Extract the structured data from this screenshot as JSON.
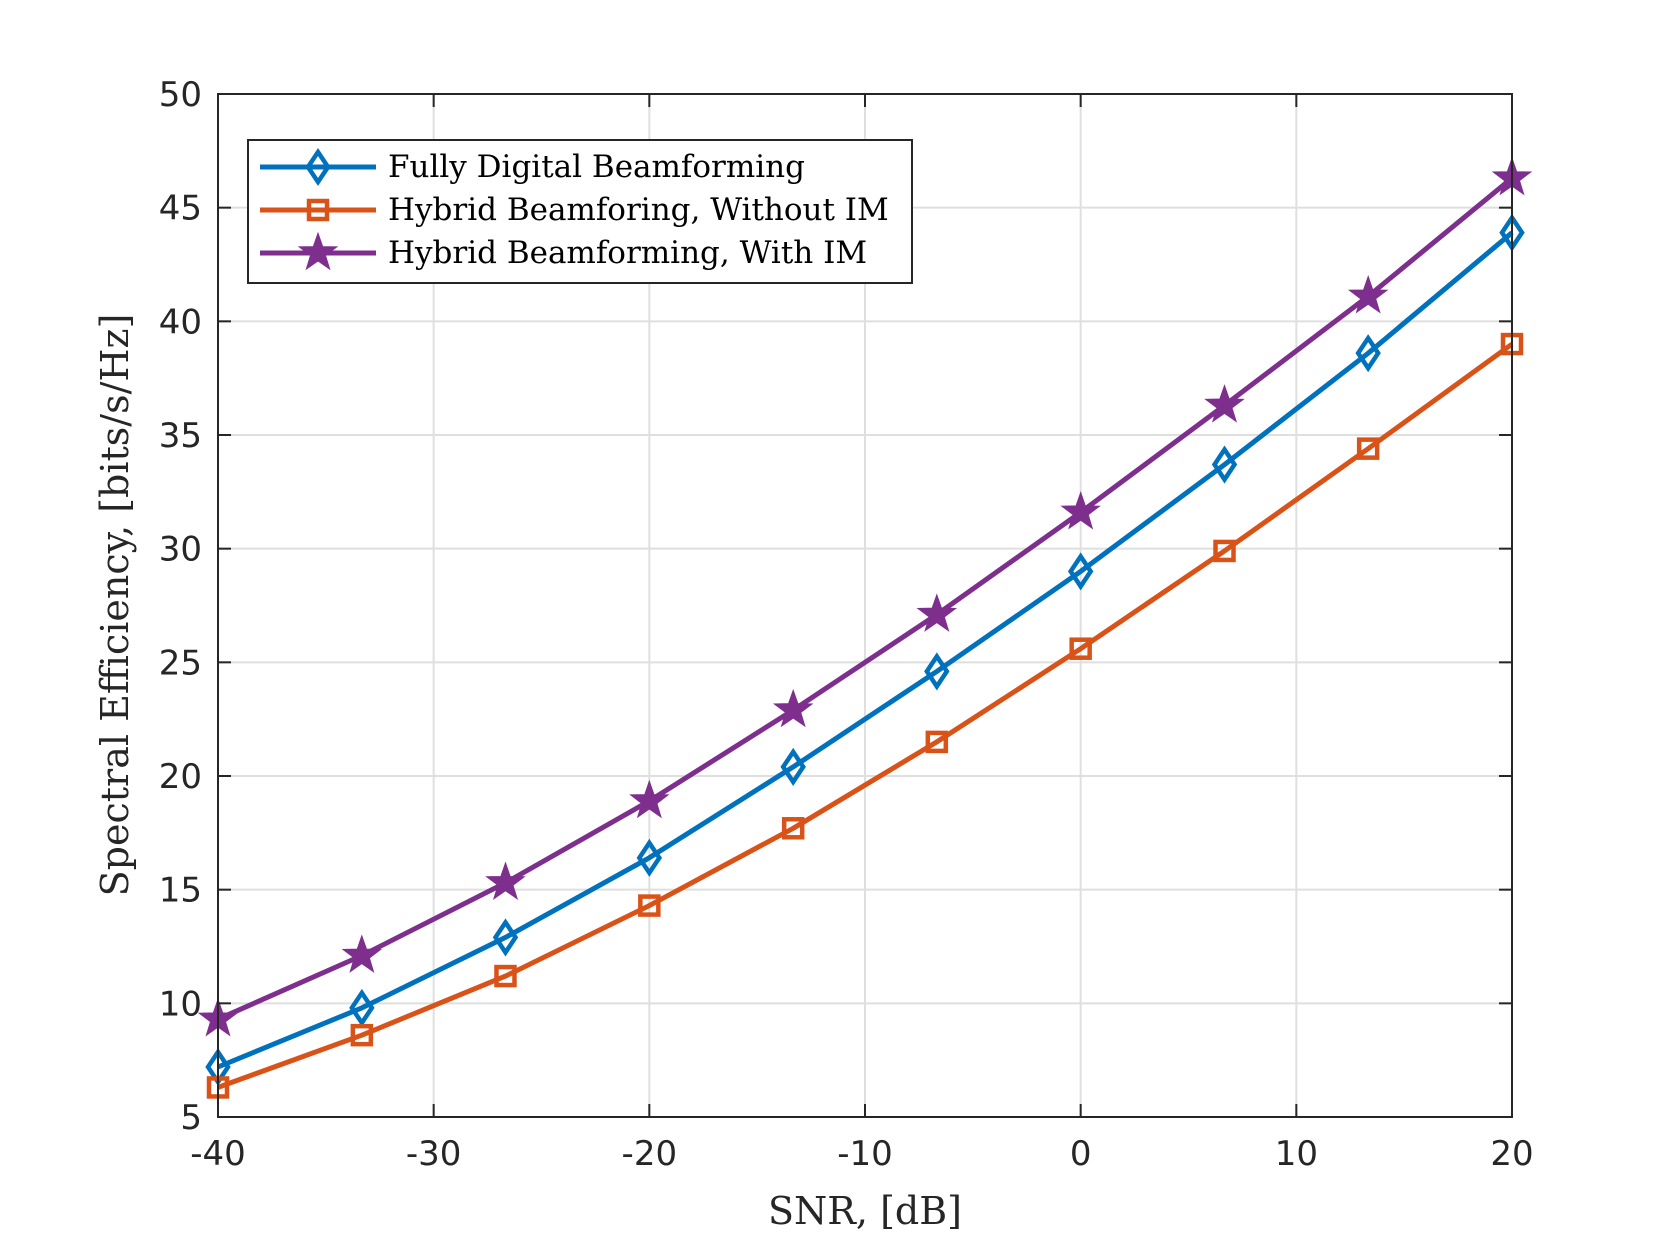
{
  "chart_data": {
    "type": "line",
    "title": "",
    "xlabel": "SNR, [dB]",
    "ylabel": "Spectral Efficiency, [bits/s/Hz]",
    "xlim": [
      -40,
      20
    ],
    "ylim": [
      5,
      50
    ],
    "xticks": [
      -40,
      -30,
      -20,
      -10,
      0,
      10,
      20
    ],
    "yticks": [
      5,
      10,
      15,
      20,
      25,
      30,
      35,
      40,
      45,
      50
    ],
    "grid": true,
    "legend_position": "top-left",
    "x": [
      -40,
      -33.33,
      -26.67,
      -20,
      -13.33,
      -6.67,
      0,
      6.67,
      13.33,
      20
    ],
    "series": [
      {
        "name": "Fully Digital Beamforming",
        "color": "#0072BD",
        "marker": "diamond",
        "values": [
          7.2,
          9.8,
          12.9,
          16.4,
          20.4,
          24.6,
          29.0,
          33.7,
          38.6,
          43.9
        ]
      },
      {
        "name": "Hybrid Beamforing, Without IM",
        "color": "#D95319",
        "marker": "square",
        "values": [
          6.3,
          8.6,
          11.2,
          14.3,
          17.7,
          21.5,
          25.6,
          29.9,
          34.4,
          39.0
        ]
      },
      {
        "name": "Hybrid Beamforming, With IM",
        "color": "#7E2F8E",
        "marker": "star",
        "values": [
          9.3,
          12.1,
          15.3,
          18.9,
          22.9,
          27.1,
          31.6,
          36.3,
          41.1,
          46.3
        ]
      }
    ]
  }
}
